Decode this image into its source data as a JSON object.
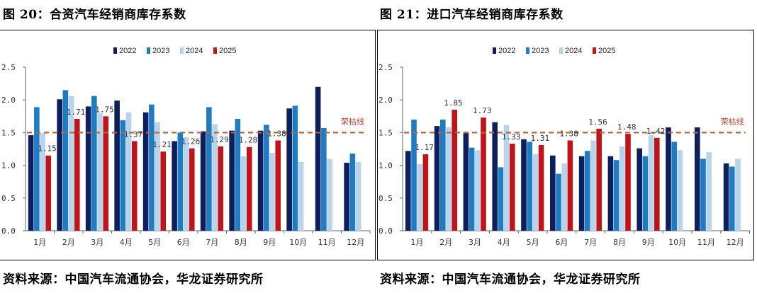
{
  "colors": {
    "2022": "#0d1f5c",
    "2023": "#1f7bc2",
    "2024": "#b8d3ec",
    "2025": "#c0141b",
    "ref_line": "#b5643c"
  },
  "chart_data": [
    {
      "type": "bar",
      "title": "图 20：合资汽车经销商库存系数",
      "source": "资料来源：中国汽车流通协会，华龙证券研究所",
      "categories": [
        "1月",
        "2月",
        "3月",
        "4月",
        "5月",
        "6月",
        "7月",
        "8月",
        "9月",
        "10月",
        "11月",
        "12月"
      ],
      "series": [
        {
          "name": "2022",
          "values": [
            1.46,
            2.01,
            1.9,
            1.99,
            1.81,
            1.37,
            1.52,
            1.53,
            1.53,
            1.87,
            2.2,
            1.04
          ]
        },
        {
          "name": "2023",
          "values": [
            1.89,
            2.15,
            2.06,
            1.69,
            1.93,
            1.5,
            1.89,
            1.71,
            1.62,
            1.91,
            1.57,
            1.18
          ]
        },
        {
          "name": "2024",
          "values": [
            1.49,
            2.06,
            1.8,
            1.81,
            1.66,
            1.43,
            1.63,
            1.14,
            1.19,
            1.05,
            1.1,
            1.05
          ]
        },
        {
          "name": "2025",
          "values": [
            1.15,
            1.71,
            1.75,
            1.37,
            1.21,
            1.26,
            1.29,
            1.28,
            1.38,
            null,
            null,
            null
          ]
        }
      ],
      "data_labels": [
        "1.15",
        "1.71",
        "1.75",
        "1.37",
        "1.21",
        "1.26",
        "1.29",
        "1.28",
        "1.38"
      ],
      "ylim": [
        0,
        2.5
      ],
      "yticks": [
        "0.0",
        "0.5",
        "1.0",
        "1.5",
        "2.0",
        "2.5"
      ],
      "reference_line": {
        "value": 1.5,
        "label": "荣枯线"
      },
      "legend": [
        "2022",
        "2023",
        "2024",
        "2025"
      ]
    },
    {
      "type": "bar",
      "title": "图 21：进口汽车经销商库存系数",
      "source": "资料来源：中国汽车流通协会，华龙证券研究所",
      "categories": [
        "1月",
        "2月",
        "3月",
        "4月",
        "5月",
        "6月",
        "7月",
        "8月",
        "9月",
        "10月",
        "11月",
        "12月"
      ],
      "series": [
        {
          "name": "2022",
          "values": [
            1.22,
            1.6,
            1.5,
            1.66,
            1.4,
            1.15,
            1.14,
            1.14,
            1.26,
            1.58,
            1.58,
            1.03
          ]
        },
        {
          "name": "2023",
          "values": [
            1.7,
            1.7,
            1.27,
            0.97,
            1.36,
            0.87,
            1.22,
            1.08,
            1.14,
            1.36,
            1.1,
            0.98
          ]
        },
        {
          "name": "2024",
          "values": [
            1.02,
            1.58,
            1.23,
            1.62,
            1.17,
            1.03,
            1.38,
            1.29,
            1.46,
            1.23,
            1.2,
            1.1
          ]
        },
        {
          "name": "2025",
          "values": [
            1.17,
            1.85,
            1.73,
            1.33,
            1.31,
            1.38,
            1.56,
            1.48,
            1.42,
            null,
            null,
            null
          ]
        }
      ],
      "data_labels": [
        "1.17",
        "1.85",
        "1.73",
        "1.33",
        "1.31",
        "1.38",
        "1.56",
        "1.48",
        "1.42"
      ],
      "ylim": [
        0,
        2.5
      ],
      "yticks": [
        "0.0",
        "0.5",
        "1.0",
        "1.5",
        "2.0",
        "2.5"
      ],
      "reference_line": {
        "value": 1.5,
        "label": "荣枯线"
      },
      "legend": [
        "2022",
        "2023",
        "2024",
        "2025"
      ]
    }
  ]
}
